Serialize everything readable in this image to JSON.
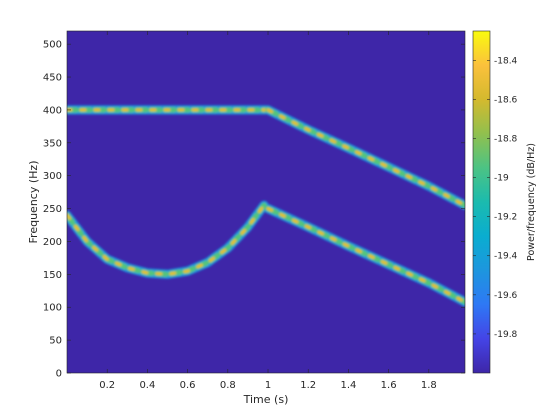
{
  "chart_data": {
    "type": "heatmap",
    "title": "",
    "xlabel": "Time (s)",
    "ylabel": "Frequency (Hz)",
    "xlim": [
      0,
      1.98
    ],
    "ylim": [
      0,
      520
    ],
    "x_ticks": [
      0.2,
      0.4,
      0.6,
      0.8,
      1,
      1.2,
      1.4,
      1.6,
      1.8
    ],
    "x_tick_labels": [
      "0.2",
      "0.4",
      "0.6",
      "0.8",
      "1",
      "1.2",
      "1.4",
      "1.6",
      "1.8"
    ],
    "y_ticks": [
      0,
      50,
      100,
      150,
      200,
      250,
      300,
      350,
      400,
      450,
      500
    ],
    "y_tick_labels": [
      "0",
      "50",
      "100",
      "150",
      "200",
      "250",
      "300",
      "350",
      "400",
      "450",
      "500"
    ],
    "colorbar": {
      "label": "Power/frequency (dB/Hz)",
      "range": [
        -20.0,
        -18.25
      ],
      "ticks": [
        -19.8,
        -19.6,
        -19.4,
        -19.2,
        -19,
        -18.8,
        -18.6,
        -18.4
      ],
      "tick_labels": [
        "-19.8",
        "-19.6",
        "-19.4",
        "-19.2",
        "-19",
        "-18.8",
        "-18.6",
        "-18.4"
      ],
      "colormap": "parula"
    },
    "background_color": "#3e26a8",
    "series": [
      {
        "x": [
          0.0,
          0.1,
          0.2,
          0.3,
          0.4,
          0.5,
          0.6,
          0.7,
          0.8,
          0.9,
          0.99
        ],
        "y": [
          400,
          400,
          400,
          400,
          400,
          400,
          400,
          400,
          400,
          400,
          400
        ]
      },
      {
        "x": [
          1.0,
          1.2,
          1.4,
          1.6,
          1.8,
          1.98
        ],
        "y": [
          400,
          370,
          342,
          313,
          284,
          255
        ]
      },
      {
        "x": [
          0.0,
          0.1,
          0.2,
          0.3,
          0.4,
          0.5,
          0.6,
          0.7,
          0.8,
          0.9,
          0.98
        ],
        "y": [
          240,
          200,
          173,
          160,
          152,
          150,
          155,
          168,
          190,
          222,
          255
        ]
      },
      {
        "x": [
          1.0,
          1.2,
          1.4,
          1.6,
          1.8,
          1.98
        ],
        "y": [
          250,
          222,
          193,
          165,
          137,
          108
        ]
      }
    ]
  }
}
